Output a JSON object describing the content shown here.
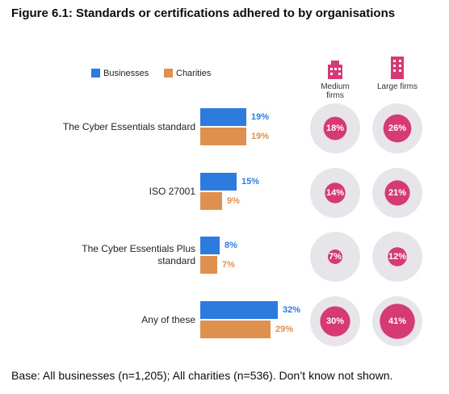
{
  "chart_data": {
    "type": "bar",
    "title": "Figure 6.1: Standards or certifications adhered to by organisations",
    "categories": [
      "The Cyber Essentials standard",
      "ISO 27001",
      "The Cyber Essentials Plus standard",
      "Any of these"
    ],
    "series": [
      {
        "name": "Businesses",
        "color": "#2e7be0",
        "values": [
          19,
          15,
          8,
          32
        ],
        "value_labels": [
          "19%",
          "15%",
          "8%",
          "32%"
        ]
      },
      {
        "name": "Charities",
        "color": "#e0904e",
        "values": [
          19,
          9,
          7,
          29
        ],
        "value_labels": [
          "19%",
          "9%",
          "7%",
          "29%"
        ]
      }
    ],
    "bubbles": [
      {
        "name": "Medium firms",
        "color": "#d63a74",
        "values": [
          18,
          14,
          7,
          30
        ],
        "value_labels": [
          "18%",
          "14%",
          "7%",
          "30%"
        ]
      },
      {
        "name": "Large firms",
        "color": "#d63a74",
        "values": [
          26,
          21,
          12,
          41
        ],
        "value_labels": [
          "26%",
          "21%",
          "12%",
          "41%"
        ]
      }
    ],
    "note": "Base: All businesses (n=1,205); All charities (n=536). Don’t know not shown."
  }
}
